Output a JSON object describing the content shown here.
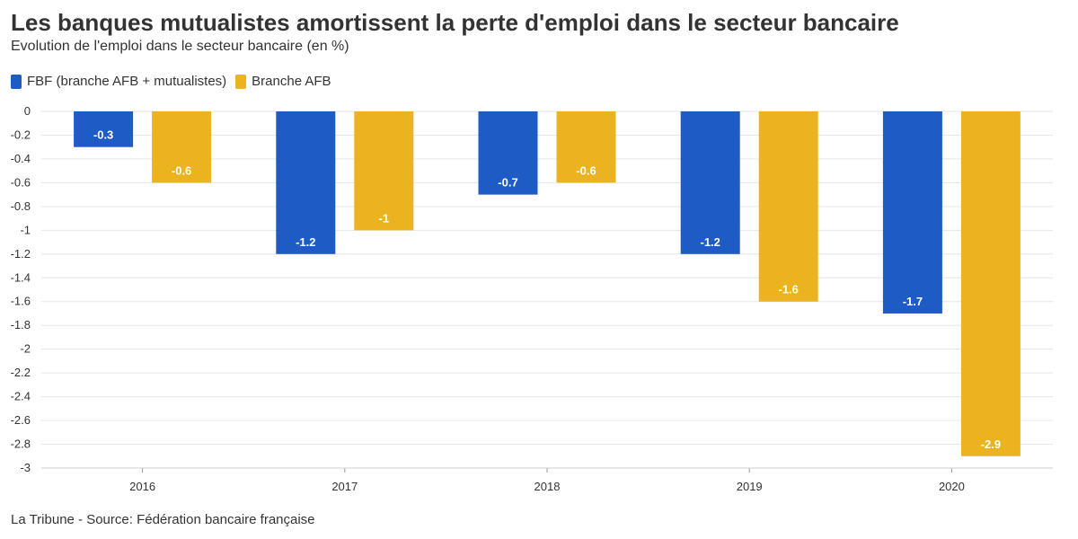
{
  "header": {
    "title": "Les banques mutualistes amortissent la perte d'emploi dans le secteur bancaire",
    "subtitle": "Evolution de l'emploi dans le secteur bancaire (en %)"
  },
  "footer": {
    "source": "La Tribune - Source: Fédération bancaire française"
  },
  "chart_data": {
    "type": "bar",
    "title": "Les banques mutualistes amortissent la perte d'emploi dans le secteur bancaire",
    "subtitle": "Evolution de l'emploi dans le secteur bancaire (en %)",
    "xlabel": "",
    "ylabel": "",
    "categories": [
      "2016",
      "2017",
      "2018",
      "2019",
      "2020"
    ],
    "series": [
      {
        "name": "FBF (branche AFB + mutualistes)",
        "color": "#1f5bc4",
        "values": [
          -0.3,
          -1.2,
          -0.7,
          -1.2,
          -1.7
        ],
        "labels": [
          "-0.3",
          "-1.2",
          "-0.7",
          "-1.2",
          "-1.7"
        ]
      },
      {
        "name": "Branche AFB",
        "color": "#ecb320",
        "values": [
          -0.6,
          -1,
          -0.6,
          -1.6,
          -2.9
        ],
        "labels": [
          "-0.6",
          "-1",
          "-0.6",
          "-1.6",
          "-2.9"
        ]
      }
    ],
    "ylim": [
      -3,
      0
    ],
    "yticks": [
      "0",
      "-0.2",
      "-0.4",
      "-0.6",
      "-0.8",
      "-1",
      "-1.2",
      "-1.4",
      "-1.6",
      "-1.8",
      "-2",
      "-2.2",
      "-2.4",
      "-2.6",
      "-2.8",
      "-3"
    ],
    "grid": true,
    "legend_position": "top-left"
  }
}
